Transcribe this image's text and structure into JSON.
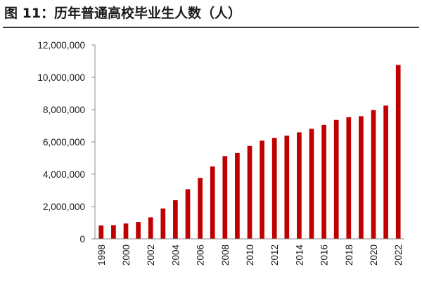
{
  "title": "图 11：历年普通高校毕业生人数（人）",
  "colors": {
    "bar": "#c00000",
    "axis": "#8c8c8c",
    "title_rule": "#3a3a3a"
  },
  "chart_data": {
    "type": "bar",
    "title": "图 11：历年普通高校毕业生人数（人）",
    "xlabel": "",
    "ylabel": "",
    "categories": [
      "1998",
      "1999",
      "2000",
      "2001",
      "2002",
      "2003",
      "2004",
      "2005",
      "2006",
      "2007",
      "2008",
      "2009",
      "2010",
      "2011",
      "2012",
      "2013",
      "2014",
      "2015",
      "2016",
      "2017",
      "2018",
      "2019",
      "2020",
      "2021",
      "2022"
    ],
    "x_tick_labels": [
      "1998",
      "2000",
      "2002",
      "2004",
      "2006",
      "2008",
      "2010",
      "2012",
      "2014",
      "2016",
      "2018",
      "2020",
      "2022"
    ],
    "values": [
      830000,
      850000,
      950000,
      1040000,
      1330000,
      1880000,
      2390000,
      3070000,
      3770000,
      4480000,
      5120000,
      5310000,
      5750000,
      6080000,
      6250000,
      6390000,
      6590000,
      6810000,
      7050000,
      7360000,
      7530000,
      7590000,
      7970000,
      8250000,
      10760000
    ],
    "y_tick_labels": [
      "0",
      "2,000,000",
      "4,000,000",
      "6,000,000",
      "8,000,000",
      "10,000,000",
      "12,000,000"
    ],
    "ylim": [
      0,
      12000000
    ],
    "grid": false,
    "legend": "none"
  }
}
